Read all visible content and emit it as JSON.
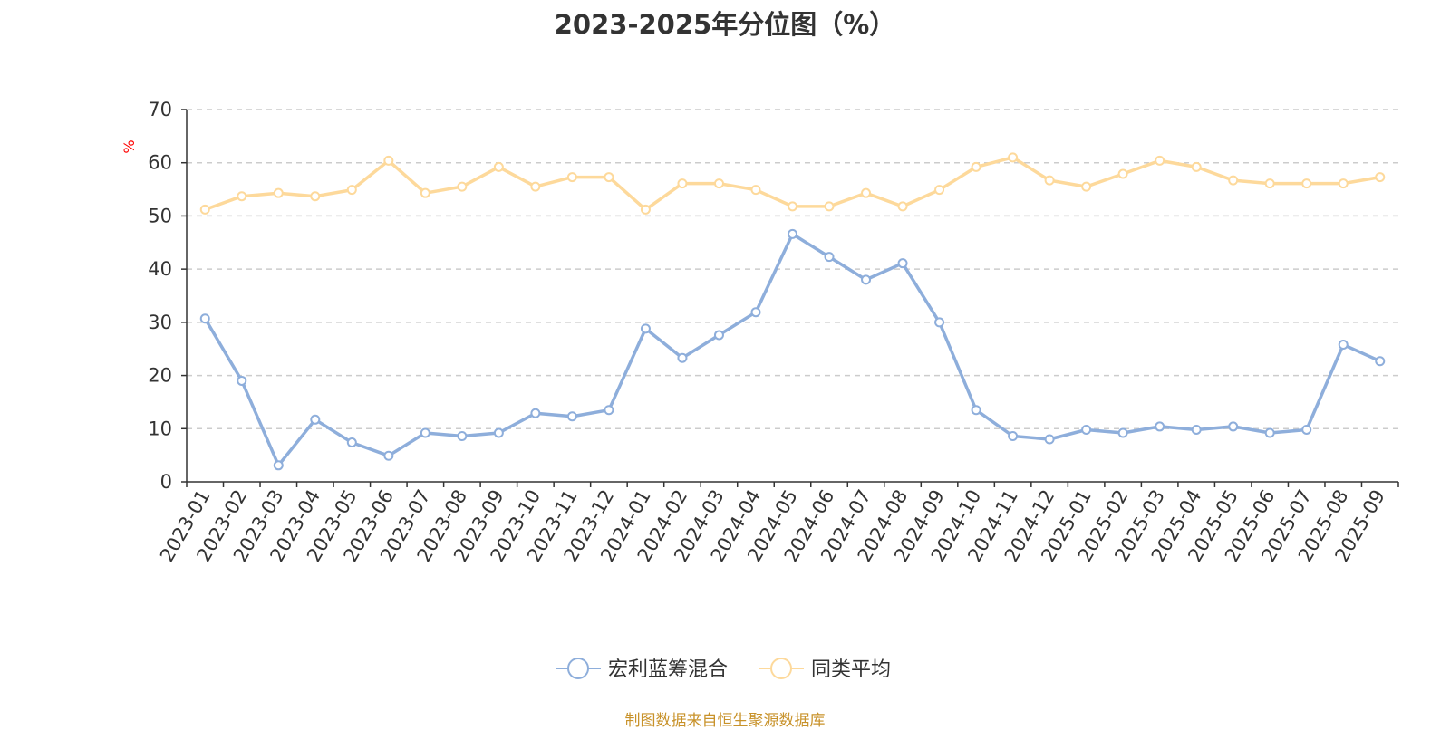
{
  "chart_data": {
    "type": "line",
    "title": "2023-2025年分位图（%）",
    "ylabel": "%",
    "ylim": [
      0,
      70
    ],
    "yticks": [
      0,
      10,
      20,
      30,
      40,
      50,
      60,
      70
    ],
    "grid": true,
    "legend_position": "bottom",
    "categories": [
      "2023-01",
      "2023-02",
      "2023-03",
      "2023-04",
      "2023-05",
      "2023-06",
      "2023-07",
      "2023-08",
      "2023-09",
      "2023-10",
      "2023-11",
      "2023-12",
      "2024-01",
      "2024-02",
      "2024-03",
      "2024-04",
      "2024-05",
      "2024-06",
      "2024-07",
      "2024-08",
      "2024-09",
      "2024-10",
      "2024-11",
      "2024-12",
      "2025-01",
      "2025-02",
      "2025-03",
      "2025-04",
      "2025-05",
      "2025-06",
      "2025-07",
      "2025-08",
      "2025-09"
    ],
    "series": [
      {
        "name": "宏利蓝筹混合",
        "color": "#8eaedb",
        "values": [
          30.7,
          19.0,
          3.1,
          11.7,
          7.4,
          4.9,
          9.2,
          8.6,
          9.2,
          12.9,
          12.3,
          13.5,
          28.8,
          23.3,
          27.6,
          31.9,
          46.6,
          42.3,
          38.0,
          41.1,
          30.0,
          13.5,
          8.6,
          8.0,
          9.8,
          9.2,
          10.4,
          9.8,
          10.4,
          9.2,
          9.8,
          25.8,
          22.7
        ]
      },
      {
        "name": "同类平均",
        "color": "#fdd99b",
        "values": [
          51.2,
          53.7,
          54.3,
          53.7,
          54.9,
          60.4,
          54.3,
          55.5,
          59.2,
          55.5,
          57.3,
          57.3,
          51.2,
          56.1,
          56.1,
          54.9,
          51.8,
          51.8,
          54.3,
          51.8,
          54.9,
          59.2,
          61.0,
          56.7,
          55.5,
          57.9,
          60.4,
          59.2,
          56.7,
          56.1,
          56.1,
          56.1,
          57.3
        ]
      }
    ]
  },
  "source_note": "制图数据来自恒生聚源数据库"
}
